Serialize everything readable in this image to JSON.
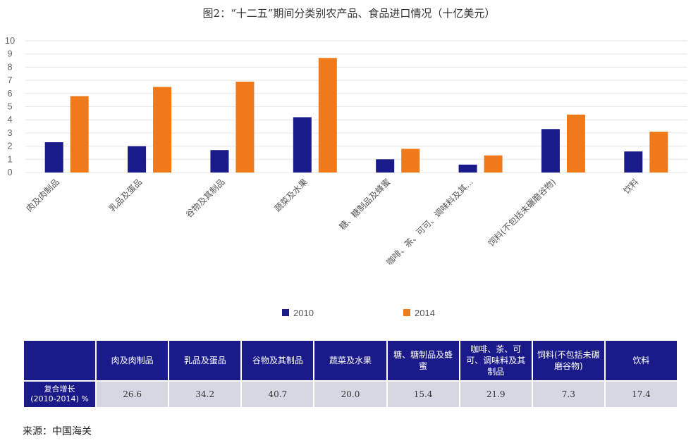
{
  "title": "图2：“十二五”期间分类别农产品、食品进口情况（十亿美元）",
  "chart_data": {
    "type": "bar",
    "title": "图2：“十二五”期间分类别农产品、食品进口情况（十亿美元）",
    "categories": [
      "肉及肉制品",
      "乳品及蛋品",
      "谷物及其制品",
      "蔬菜及水果",
      "糖、糖制品及蜂蜜",
      "咖啡、茶、可可、调味料及其...",
      "饲料(不包括未碾磨谷物)",
      "饮料"
    ],
    "series": [
      {
        "name": "2010",
        "color": "#1a1a8a",
        "values": [
          2.3,
          2.0,
          1.7,
          4.2,
          1.0,
          0.6,
          3.3,
          1.6
        ]
      },
      {
        "name": "2014",
        "color": "#f07a1a",
        "values": [
          5.8,
          6.5,
          6.9,
          8.7,
          1.8,
          1.3,
          4.4,
          3.1
        ]
      }
    ],
    "ylim": [
      0,
      10
    ],
    "yticks": [
      "0",
      "1",
      "2",
      "3",
      "4",
      "5",
      "6",
      "7",
      "8",
      "9",
      "10"
    ],
    "xlabel": "",
    "ylabel": "",
    "grid": true,
    "legend": "bottom-center"
  },
  "table": {
    "headers": [
      "肉及肉制品",
      "乳品及蛋品",
      "谷物及其制品",
      "蔬菜及水果",
      "糖、糖制品及蜂蜜",
      "咖啡、茶、可可、调味料及其制品",
      "饲料(不包括未碾磨谷物)",
      "饮料"
    ],
    "row_label_line1": "复合增长",
    "row_label_line2": "(2010-2014) %",
    "values": [
      "26.6",
      "34.2",
      "40.7",
      "20.0",
      "15.4",
      "21.9",
      "7.3",
      "17.4"
    ]
  },
  "source": "来源：中国海关"
}
